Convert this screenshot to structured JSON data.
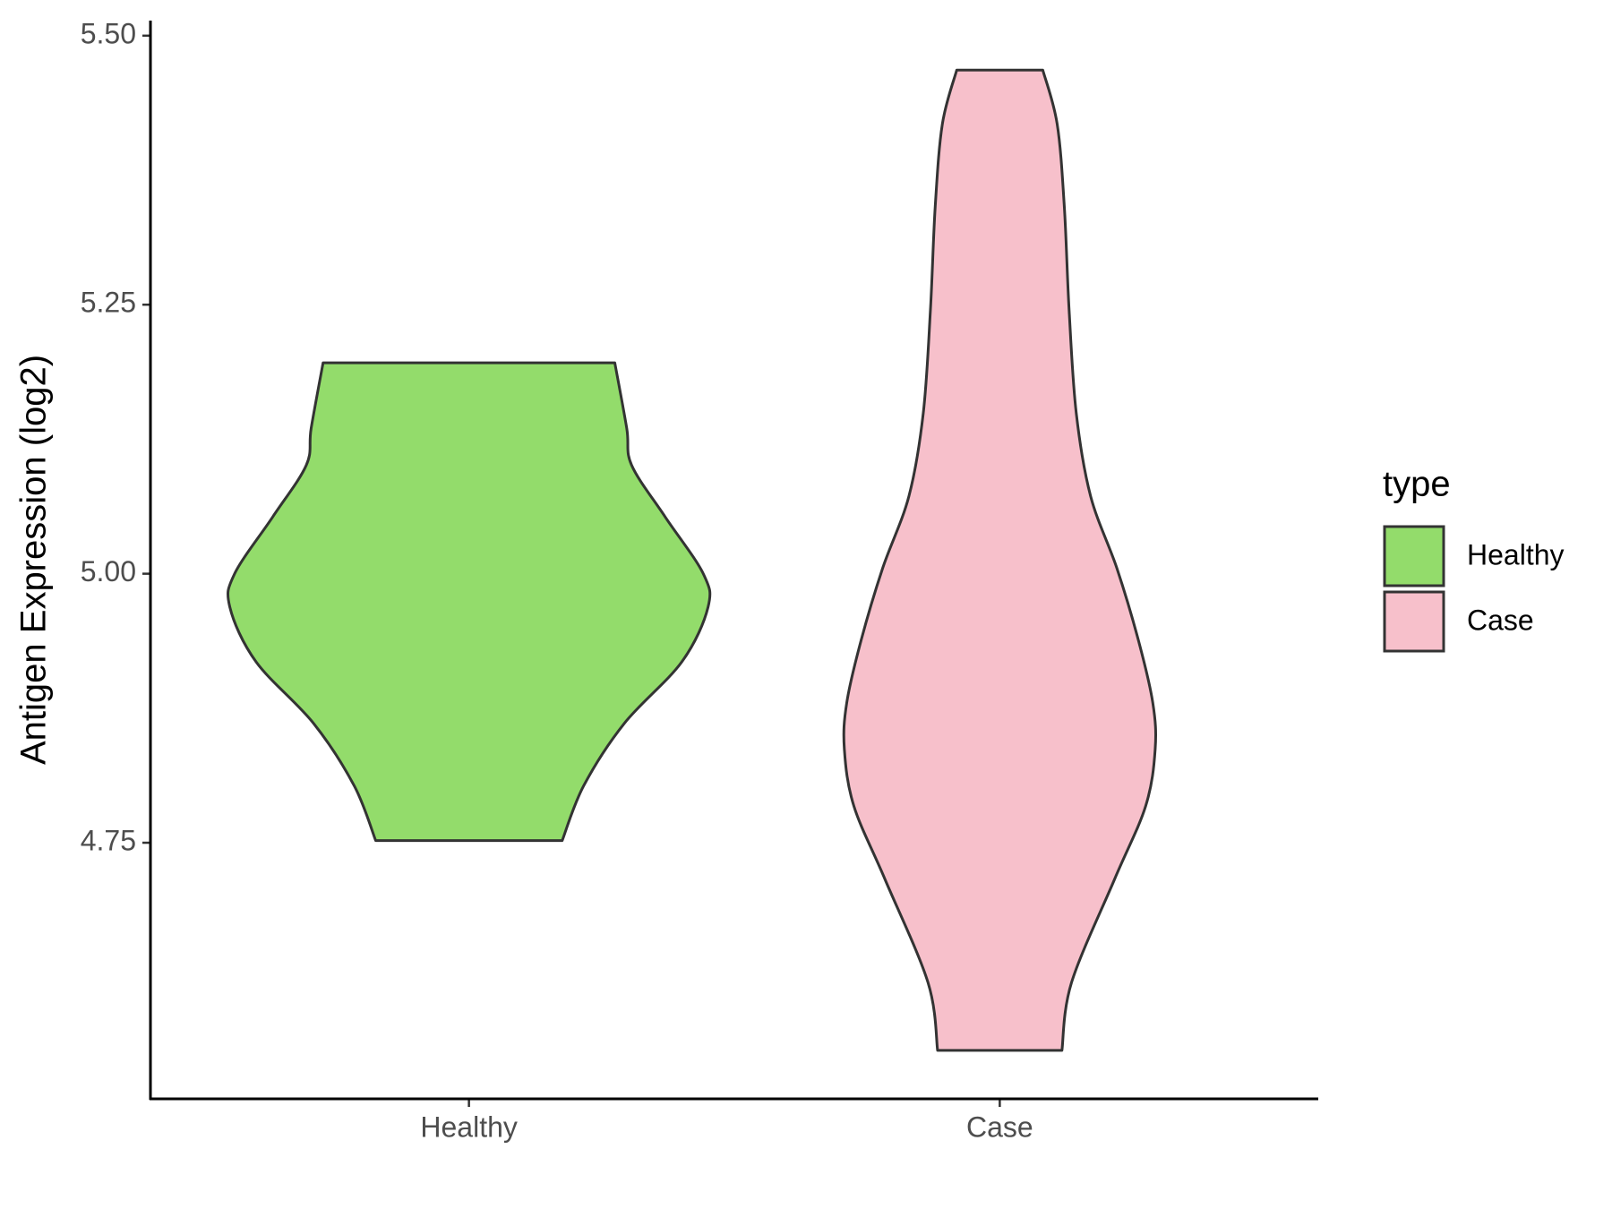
{
  "chart_data": {
    "type": "violin",
    "y_label": "Antigen Expression (log2)",
    "categories": [
      "Healthy",
      "Case"
    ],
    "legend_title": "type",
    "legend": "right",
    "ylim": [
      4.512,
      5.514
    ],
    "yticks": [
      4.75,
      {
        "value": 5,
        "label": "5.00"
      },
      5.25,
      {
        "value": 5.5,
        "label": "5.50"
      }
    ],
    "series": [
      {
        "name": "Healthy",
        "color": "#93dc6b",
        "y": [
          5.196,
          5.135,
          5.101,
          5.053,
          5.0,
          4.969,
          4.918,
          4.861,
          4.803,
          4.752
        ],
        "density": [
          0.61,
          0.66,
          0.68,
          0.82,
          0.98,
          1.0,
          0.89,
          0.65,
          0.48,
          0.39
        ]
      },
      {
        "name": "Case",
        "color": "#f7c0cb",
        "y": [
          5.468,
          5.418,
          5.341,
          5.245,
          5.149,
          5.072,
          5.005,
          4.938,
          4.88,
          4.837,
          4.784,
          4.716,
          4.62,
          4.557
        ],
        "density": [
          0.18,
          0.24,
          0.27,
          0.29,
          0.32,
          0.38,
          0.49,
          0.58,
          0.64,
          0.65,
          0.61,
          0.48,
          0.3,
          0.26
        ]
      }
    ]
  }
}
